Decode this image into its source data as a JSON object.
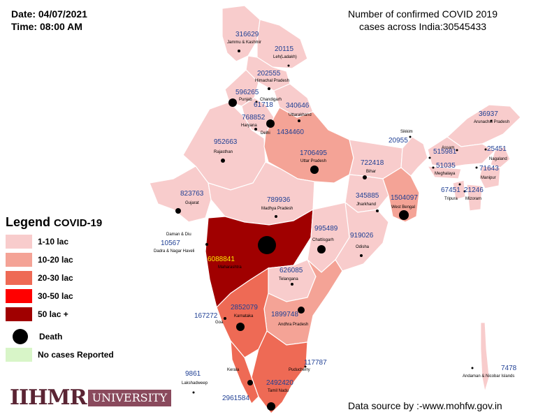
{
  "header": {
    "date": "Date: 04/07/2021",
    "time": "Time: 08:00 AM"
  },
  "title": {
    "line1": "Number of confirmed COVID 2019",
    "line2": "cases across India:30545433"
  },
  "legend": {
    "title": "Legend",
    "subtitle": "COVID-19",
    "items": [
      {
        "label": "1-10 lac",
        "color": "#f8cccc"
      },
      {
        "label": "10-20 lac",
        "color": "#f4a396"
      },
      {
        "label": "20-30 lac",
        "color": "#ee6a55"
      },
      {
        "label": "30-50 lac",
        "color": "#ff0000"
      },
      {
        "label": "50 lac +",
        "color": "#a00000"
      }
    ],
    "death_label": "Death",
    "no_cases_label": "No cases Reported",
    "no_cases_color": "#d8f5c8"
  },
  "source": "Data source by :-www.mohfw.gov.in",
  "logo": {
    "mark": "IIHMR",
    "sub": "UNIVERSITY"
  },
  "regions": [
    {
      "name": "Jammu & Kashmir",
      "cases": "316629",
      "color": "#f8cccc"
    },
    {
      "name": "Leh(Ladakh)",
      "cases": "20115",
      "color": "#f8cccc"
    },
    {
      "name": "Himachal Pradesh",
      "cases": "202555",
      "color": "#f8cccc"
    },
    {
      "name": "Punjab",
      "cases": "596265",
      "color": "#f8cccc"
    },
    {
      "name": "Chandigarh",
      "cases": "61718",
      "color": "#f8cccc"
    },
    {
      "name": "Uttarakhand",
      "cases": "340646",
      "color": "#f8cccc"
    },
    {
      "name": "Haryana",
      "cases": "768852",
      "color": "#f8cccc"
    },
    {
      "name": "Delhi",
      "cases": "1434460",
      "color": "#f4a396"
    },
    {
      "name": "Rajasthan",
      "cases": "952663",
      "color": "#f8cccc"
    },
    {
      "name": "Uttar Pradesh",
      "cases": "1706495",
      "color": "#f4a396"
    },
    {
      "name": "Bihar",
      "cases": "722418",
      "color": "#f8cccc"
    },
    {
      "name": "Sikkim",
      "cases": "20955",
      "color": "#f8cccc"
    },
    {
      "name": "Arunachal Pradesh",
      "cases": "36937",
      "color": "#f8cccc"
    },
    {
      "name": "Assam",
      "cases": "515981",
      "color": "#f8cccc"
    },
    {
      "name": "Nagaland",
      "cases": "25451",
      "color": "#f8cccc"
    },
    {
      "name": "Meghalaya",
      "cases": "51035",
      "color": "#f8cccc"
    },
    {
      "name": "Manipur",
      "cases": "71643",
      "color": "#f8cccc"
    },
    {
      "name": "Tripura",
      "cases": "67451",
      "color": "#f8cccc"
    },
    {
      "name": "Mizoram",
      "cases": "21246",
      "color": "#f8cccc"
    },
    {
      "name": "Gujarat",
      "cases": "823763",
      "color": "#f8cccc"
    },
    {
      "name": "Madhya Pradesh",
      "cases": "789936",
      "color": "#f8cccc"
    },
    {
      "name": "Jharkhand",
      "cases": "345885",
      "color": "#f8cccc"
    },
    {
      "name": "West Bengal",
      "cases": "1504097",
      "color": "#f4a396"
    },
    {
      "name": "Daman & Diu",
      "cases": "",
      "color": "#f8cccc"
    },
    {
      "name": "Dadra & Nagar Haveli",
      "cases": "10567",
      "color": "#f8cccc"
    },
    {
      "name": "Maharashtra",
      "cases": "6088841",
      "color": "#a00000"
    },
    {
      "name": "Chattisgarh",
      "cases": "995489",
      "color": "#f8cccc"
    },
    {
      "name": "Odisha",
      "cases": "919026",
      "color": "#f8cccc"
    },
    {
      "name": "Telangana",
      "cases": "626085",
      "color": "#f8cccc"
    },
    {
      "name": "Goa",
      "cases": "167272",
      "color": "#f8cccc"
    },
    {
      "name": "Karnataka",
      "cases": "2852079",
      "color": "#ee6a55"
    },
    {
      "name": "Andhra Pradesh",
      "cases": "1899748",
      "color": "#f4a396"
    },
    {
      "name": "Kerala",
      "cases": "2961584",
      "color": "#ee6a55"
    },
    {
      "name": "Puducherry",
      "cases": "117787",
      "color": "#f8cccc"
    },
    {
      "name": "Tamil Nadu",
      "cases": "2492420",
      "color": "#ee6a55"
    },
    {
      "name": "Lakshadweep",
      "cases": "9861",
      "color": "#f8cccc"
    },
    {
      "name": "Andaman & Nicobar Islands",
      "cases": "7478",
      "color": "#f8cccc"
    }
  ]
}
